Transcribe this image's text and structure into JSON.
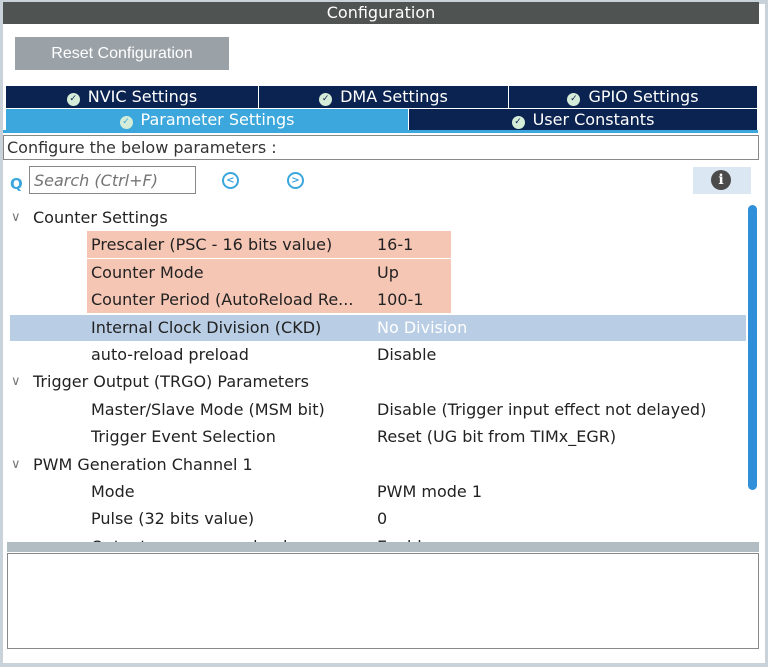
{
  "title": "Configuration",
  "reset_label": "Reset Configuration",
  "tabs_row1": [
    {
      "label": "NVIC Settings"
    },
    {
      "label": "DMA Settings"
    },
    {
      "label": "GPIO Settings"
    }
  ],
  "tabs_row2": [
    {
      "label": "Parameter Settings",
      "active": true
    },
    {
      "label": "User Constants"
    }
  ],
  "configure_label": "Configure the below parameters :",
  "search": {
    "placeholder": "Search (Ctrl+F)",
    "value": ""
  },
  "icons": {
    "check": "check-circle-icon",
    "search": "search-icon",
    "prev": "chevron-left-circle-icon",
    "next": "chevron-right-circle-icon",
    "info": "info-icon",
    "expand": "chevron-down-icon"
  },
  "colors": {
    "tab_active": "#3ba7dc",
    "tab": "#0b2350",
    "highlight": "#f6c6b5",
    "selected": "#b9cee5"
  },
  "tree": [
    {
      "type": "group",
      "label": "Counter Settings"
    },
    {
      "type": "param",
      "name": "Prescaler (PSC - 16 bits value)",
      "value": "16-1",
      "modified": true
    },
    {
      "type": "param",
      "name": "Counter Mode",
      "value": "Up",
      "modified": true
    },
    {
      "type": "param",
      "name": "Counter Period (AutoReload Re...",
      "value": "100-1",
      "modified": true
    },
    {
      "type": "param",
      "name": "Internal Clock Division (CKD)",
      "value": "No Division",
      "selected": true
    },
    {
      "type": "param",
      "name": "auto-reload preload",
      "value": "Disable"
    },
    {
      "type": "group",
      "label": "Trigger Output (TRGO) Parameters"
    },
    {
      "type": "param",
      "name": "Master/Slave Mode (MSM bit)",
      "value": "Disable (Trigger input effect not delayed)"
    },
    {
      "type": "param",
      "name": "Trigger Event Selection",
      "value": "Reset (UG bit from TIMx_EGR)"
    },
    {
      "type": "group",
      "label": "PWM Generation Channel 1"
    },
    {
      "type": "param",
      "name": "Mode",
      "value": "PWM mode 1"
    },
    {
      "type": "param",
      "name": "Pulse (32 bits value)",
      "value": "0"
    },
    {
      "type": "param",
      "name": "Output compare preload",
      "value": "Enable"
    }
  ]
}
